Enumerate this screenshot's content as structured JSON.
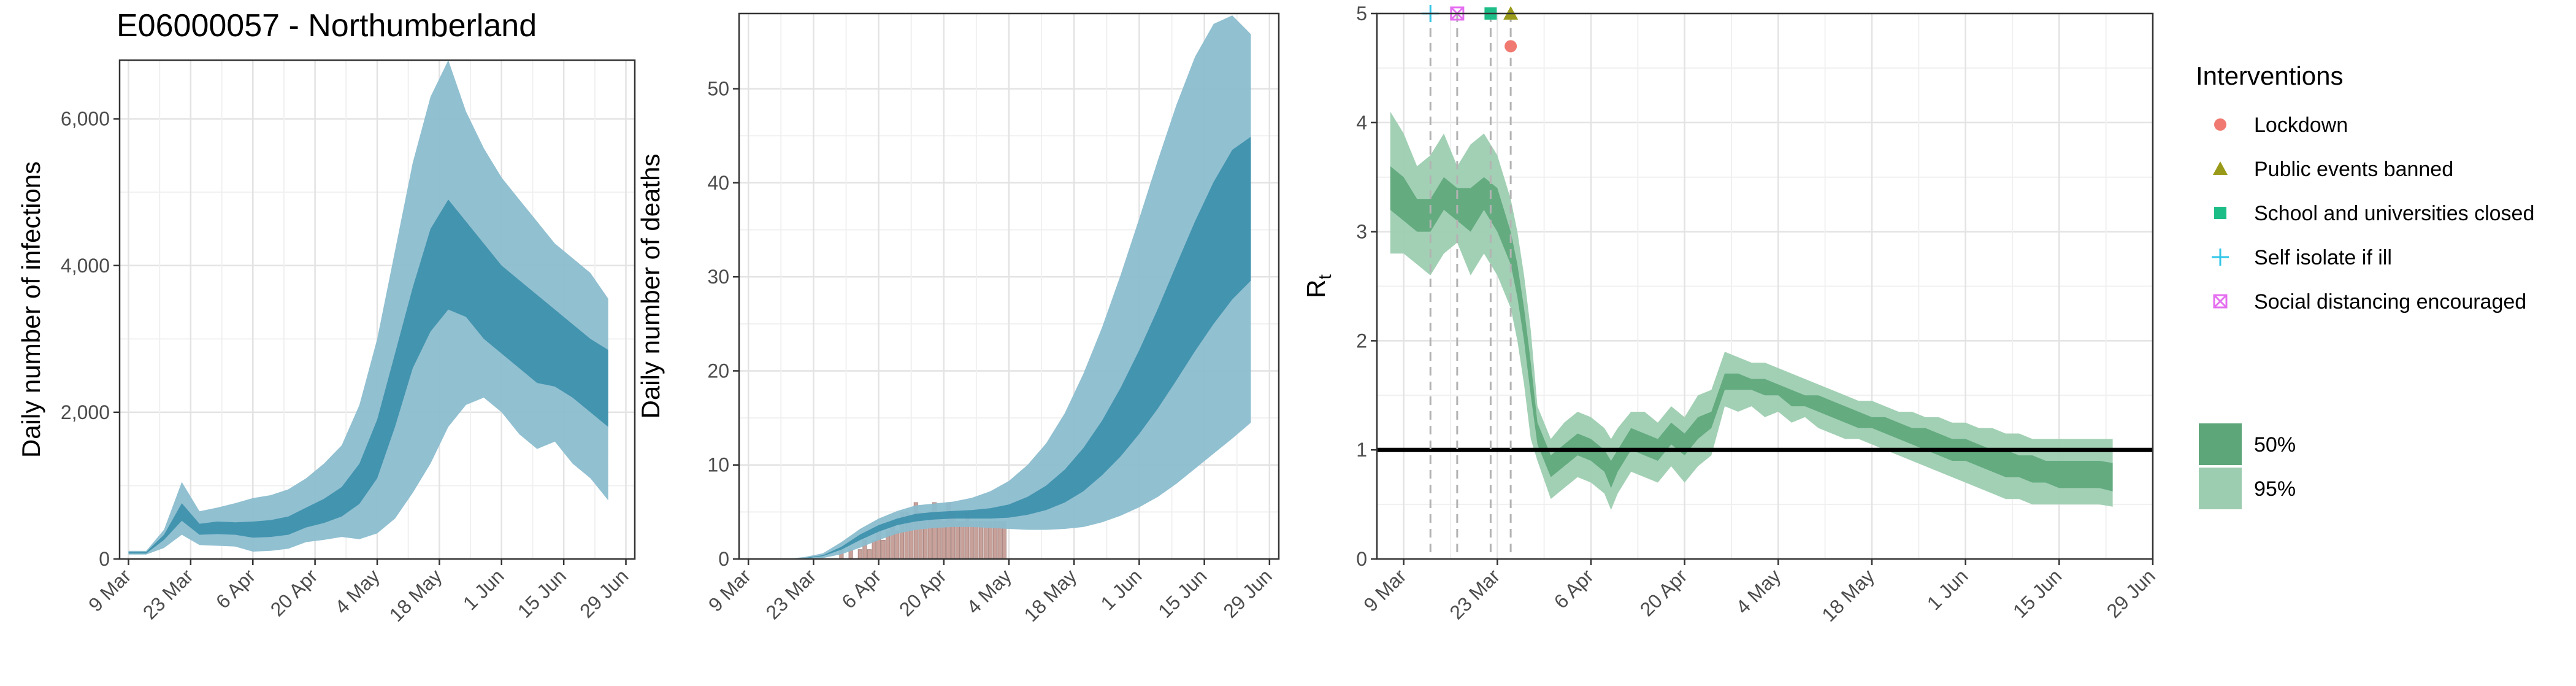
{
  "title": "E06000057 - Northumberland",
  "colors": {
    "band95_blue": "#8bbdcf",
    "band50_blue": "#3b8fab",
    "deaths_bar": "#c9a19b",
    "band95_green": "#9dcdb0",
    "band50_green": "#5da67a",
    "lockdown": "#f07a71",
    "public_events": "#9a9a1a",
    "schools": "#1dbd87",
    "self_isolate": "#31c6e8",
    "social_distancing": "#e46ff0"
  },
  "chart_data": [
    {
      "type": "area",
      "ylabel": "Daily number of infections",
      "xlabel": "",
      "ylim": [
        0,
        6800
      ],
      "yticks": [
        0,
        2000,
        4000,
        6000
      ],
      "ytick_labels": [
        "0",
        "2,000",
        "4,000",
        "6,000"
      ],
      "xlim": [
        -2,
        114
      ],
      "xticks": [
        0,
        14,
        28,
        42,
        56,
        70,
        84,
        98,
        112
      ],
      "xtick_labels": [
        "9 Mar",
        "23 Mar",
        "6 Apr",
        "20 Apr",
        "4 May",
        "18 May",
        "1 Jun",
        "15 Jun",
        "29 Jun"
      ],
      "x_unit": "days since 9 Mar",
      "grid": true,
      "bands": [
        {
          "name": "95%",
          "x": [
            0,
            4,
            8,
            12,
            16,
            20,
            24,
            28,
            32,
            36,
            40,
            44,
            48,
            52,
            56,
            60,
            64,
            68,
            72,
            76,
            80,
            84,
            88,
            92,
            96,
            100,
            104,
            108
          ],
          "low": [
            60,
            60,
            150,
            330,
            190,
            180,
            170,
            100,
            110,
            140,
            230,
            260,
            300,
            270,
            350,
            550,
            900,
            1300,
            1800,
            2100,
            2200,
            2000,
            1700,
            1500,
            1600,
            1300,
            1100,
            800
          ],
          "high": [
            110,
            110,
            400,
            1050,
            650,
            700,
            760,
            830,
            870,
            950,
            1100,
            1300,
            1550,
            2100,
            3000,
            4200,
            5400,
            6300,
            6800,
            6100,
            5600,
            5200,
            4900,
            4600,
            4300,
            4100,
            3900,
            3550
          ]
        },
        {
          "name": "50%",
          "x": [
            0,
            4,
            8,
            12,
            16,
            20,
            24,
            28,
            32,
            36,
            40,
            44,
            48,
            52,
            56,
            60,
            64,
            68,
            72,
            76,
            80,
            84,
            88,
            92,
            96,
            100,
            104,
            108
          ],
          "low": [
            75,
            75,
            260,
            520,
            330,
            340,
            330,
            290,
            300,
            330,
            430,
            490,
            580,
            750,
            1100,
            1800,
            2600,
            3100,
            3400,
            3300,
            3000,
            2800,
            2600,
            2400,
            2350,
            2200,
            2000,
            1800
          ],
          "high": [
            95,
            95,
            330,
            760,
            480,
            510,
            500,
            510,
            530,
            580,
            700,
            820,
            980,
            1300,
            1900,
            2800,
            3700,
            4500,
            4900,
            4600,
            4300,
            4000,
            3800,
            3600,
            3400,
            3200,
            3000,
            2850
          ]
        }
      ]
    },
    {
      "type": "area",
      "ylabel": "Daily number of deaths",
      "xlabel": "",
      "ylim": [
        0,
        58
      ],
      "yticks": [
        0,
        10,
        20,
        30,
        40,
        50
      ],
      "ytick_labels": [
        "0",
        "10",
        "20",
        "30",
        "40",
        "50"
      ],
      "xlim": [
        -2,
        114
      ],
      "xticks": [
        0,
        14,
        28,
        42,
        56,
        70,
        84,
        98,
        112
      ],
      "xtick_labels": [
        "9 Mar",
        "23 Mar",
        "6 Apr",
        "20 Apr",
        "4 May",
        "18 May",
        "1 Jun",
        "15 Jun",
        "29 Jun"
      ],
      "x_unit": "days since 9 Mar",
      "grid": true,
      "bars": {
        "name": "Observed deaths",
        "x": [
          20,
          22,
          24,
          25,
          26,
          27,
          28,
          29,
          30,
          31,
          32,
          33,
          34,
          35,
          36,
          37,
          38,
          39,
          40,
          41,
          42,
          43,
          44,
          45,
          46,
          47,
          48,
          49,
          50,
          51,
          52,
          53,
          54,
          55
        ],
        "values": [
          1,
          1,
          1,
          2,
          1,
          2,
          3,
          2,
          3,
          4,
          3,
          5,
          5,
          4,
          6,
          5,
          4,
          5,
          6,
          5,
          4,
          6,
          5,
          4,
          4,
          5,
          4,
          4,
          4,
          4,
          4,
          4,
          4,
          4
        ]
      },
      "bands": [
        {
          "name": "95%",
          "x": [
            0,
            8,
            12,
            16,
            20,
            24,
            28,
            32,
            36,
            40,
            44,
            48,
            52,
            56,
            60,
            64,
            68,
            72,
            76,
            80,
            84,
            88,
            92,
            96,
            100,
            104,
            108
          ],
          "low": [
            0,
            0,
            0,
            0.1,
            0.5,
            1.2,
            2,
            2.7,
            3.1,
            3.3,
            3.4,
            3.4,
            3.3,
            3.2,
            3.1,
            3.1,
            3.2,
            3.4,
            3.9,
            4.6,
            5.5,
            6.6,
            8,
            9.6,
            11.2,
            12.8,
            14.5
          ],
          "high": [
            0,
            0,
            0.2,
            0.6,
            1.8,
            3.2,
            4.3,
            5.1,
            5.7,
            5.9,
            6.1,
            6.5,
            7.2,
            8.3,
            10,
            12.3,
            15.5,
            19.7,
            24.6,
            30.2,
            36.2,
            42.4,
            48.3,
            53.4,
            56.9,
            57.8,
            55.8
          ]
        },
        {
          "name": "50%",
          "x": [
            0,
            8,
            12,
            16,
            20,
            24,
            28,
            32,
            36,
            40,
            44,
            48,
            52,
            56,
            60,
            64,
            68,
            72,
            76,
            80,
            84,
            88,
            92,
            96,
            100,
            104,
            108
          ],
          "low": [
            0,
            0,
            0.05,
            0.3,
            1,
            2,
            2.9,
            3.6,
            4,
            4.2,
            4.3,
            4.3,
            4.3,
            4.4,
            4.7,
            5.2,
            6,
            7.2,
            8.9,
            10.9,
            13.3,
            16,
            19,
            22.1,
            25,
            27.6,
            29.6
          ],
          "high": [
            0,
            0,
            0.1,
            0.4,
            1.3,
            2.6,
            3.6,
            4.3,
            4.8,
            5,
            5.1,
            5.2,
            5.4,
            5.8,
            6.6,
            7.8,
            9.5,
            11.8,
            14.7,
            18.2,
            22.2,
            26.6,
            31.3,
            35.9,
            40.1,
            43.5,
            44.9
          ]
        }
      ]
    },
    {
      "type": "area",
      "ylabel": "R",
      "ylabel_subscript": "t",
      "xlabel": "",
      "ylim": [
        0,
        5
      ],
      "yticks": [
        0,
        1,
        2,
        3,
        4,
        5
      ],
      "ytick_labels": [
        "0",
        "1",
        "2",
        "3",
        "4",
        "5"
      ],
      "xlim": [
        -4,
        112
      ],
      "xticks": [
        0,
        14,
        28,
        42,
        56,
        70,
        84,
        98,
        112
      ],
      "xtick_labels": [
        "9 Mar",
        "23 Mar",
        "6 Apr",
        "20 Apr",
        "4 May",
        "18 May",
        "1 Jun",
        "15 Jun",
        "29 Jun"
      ],
      "x_unit": "days since 9 Mar",
      "grid": true,
      "reference_line": 1,
      "bands": [
        {
          "name": "95%",
          "x": [
            -2,
            0,
            2,
            4,
            6,
            8,
            10,
            12,
            14,
            16,
            17,
            18,
            19,
            20,
            22,
            24,
            26,
            28,
            30,
            31,
            32,
            34,
            36,
            38,
            40,
            42,
            44,
            46,
            48,
            50,
            52,
            54,
            56,
            58,
            60,
            62,
            64,
            66,
            68,
            70,
            72,
            74,
            76,
            78,
            80,
            82,
            84,
            86,
            88,
            90,
            92,
            94,
            96,
            98,
            100,
            102,
            104,
            106
          ],
          "low": [
            2.8,
            2.8,
            2.7,
            2.6,
            2.8,
            2.9,
            2.6,
            2.8,
            2.6,
            2.3,
            2,
            1.6,
            1.1,
            0.9,
            0.55,
            0.65,
            0.75,
            0.7,
            0.6,
            0.45,
            0.6,
            0.8,
            0.75,
            0.7,
            0.85,
            0.7,
            0.85,
            0.95,
            1.4,
            1.35,
            1.4,
            1.3,
            1.35,
            1.25,
            1.3,
            1.2,
            1.15,
            1.1,
            1.1,
            1.05,
            1,
            0.95,
            0.9,
            0.85,
            0.8,
            0.75,
            0.7,
            0.65,
            0.6,
            0.55,
            0.55,
            0.5,
            0.5,
            0.5,
            0.5,
            0.5,
            0.5,
            0.48
          ],
          "high": [
            4.1,
            3.9,
            3.6,
            3.7,
            3.9,
            3.6,
            3.8,
            3.9,
            3.7,
            3.3,
            3.0,
            2.6,
            2.1,
            1.4,
            1.1,
            1.25,
            1.35,
            1.3,
            1.2,
            1.1,
            1.2,
            1.35,
            1.35,
            1.25,
            1.4,
            1.3,
            1.5,
            1.55,
            1.9,
            1.85,
            1.8,
            1.8,
            1.75,
            1.7,
            1.65,
            1.6,
            1.55,
            1.5,
            1.45,
            1.45,
            1.4,
            1.35,
            1.35,
            1.3,
            1.3,
            1.25,
            1.25,
            1.2,
            1.2,
            1.15,
            1.15,
            1.1,
            1.1,
            1.1,
            1.1,
            1.1,
            1.1,
            1.1
          ]
        },
        {
          "name": "50%",
          "x": [
            -2,
            0,
            2,
            4,
            6,
            8,
            10,
            12,
            14,
            16,
            17,
            18,
            19,
            20,
            22,
            24,
            26,
            28,
            30,
            31,
            32,
            34,
            36,
            38,
            40,
            42,
            44,
            46,
            48,
            50,
            52,
            54,
            56,
            58,
            60,
            62,
            64,
            66,
            68,
            70,
            72,
            74,
            76,
            78,
            80,
            82,
            84,
            86,
            88,
            90,
            92,
            94,
            96,
            98,
            100,
            102,
            104,
            106
          ],
          "low": [
            3.2,
            3.1,
            3.0,
            3.0,
            3.2,
            3.1,
            3.0,
            3.2,
            3.0,
            2.7,
            2.4,
            2.0,
            1.5,
            1.05,
            0.75,
            0.85,
            0.95,
            0.9,
            0.8,
            0.65,
            0.8,
            1.0,
            0.95,
            0.9,
            1.05,
            0.95,
            1.1,
            1.2,
            1.55,
            1.55,
            1.55,
            1.5,
            1.5,
            1.4,
            1.4,
            1.35,
            1.3,
            1.25,
            1.2,
            1.2,
            1.15,
            1.1,
            1.05,
            1.0,
            0.95,
            0.9,
            0.9,
            0.85,
            0.8,
            0.75,
            0.75,
            0.7,
            0.7,
            0.65,
            0.65,
            0.65,
            0.65,
            0.62
          ],
          "high": [
            3.6,
            3.5,
            3.3,
            3.3,
            3.5,
            3.4,
            3.4,
            3.5,
            3.4,
            3.0,
            2.7,
            2.3,
            1.8,
            1.25,
            0.95,
            1.05,
            1.15,
            1.1,
            1.0,
            0.9,
            1.0,
            1.2,
            1.15,
            1.1,
            1.25,
            1.15,
            1.3,
            1.35,
            1.7,
            1.7,
            1.65,
            1.65,
            1.6,
            1.55,
            1.5,
            1.5,
            1.45,
            1.4,
            1.35,
            1.3,
            1.3,
            1.25,
            1.2,
            1.2,
            1.15,
            1.1,
            1.1,
            1.05,
            1.0,
            1.0,
            0.95,
            0.95,
            0.9,
            0.9,
            0.9,
            0.9,
            0.9,
            0.88
          ]
        }
      ],
      "interventions": [
        {
          "name": "Self isolate if ill",
          "x": 4,
          "y": 5,
          "shape": "plus",
          "color_key": "self_isolate"
        },
        {
          "name": "Social distancing encouraged",
          "x": 8,
          "y": 5,
          "shape": "square-x",
          "color_key": "social_distancing"
        },
        {
          "name": "School and universities closed",
          "x": 13,
          "y": 5,
          "shape": "square",
          "color_key": "schools"
        },
        {
          "name": "Public events banned",
          "x": 16,
          "y": 5,
          "shape": "triangle",
          "color_key": "public_events"
        },
        {
          "name": "Lockdown",
          "x": 16,
          "y": 4.7,
          "shape": "circle",
          "color_key": "lockdown"
        }
      ]
    }
  ],
  "legend": {
    "interventions_title": "Interventions",
    "interventions": [
      {
        "label": "Lockdown",
        "shape": "circle",
        "color_key": "lockdown"
      },
      {
        "label": "Public events banned",
        "shape": "triangle",
        "color_key": "public_events"
      },
      {
        "label": "School and universities closed",
        "shape": "square",
        "color_key": "schools"
      },
      {
        "label": "Self isolate if ill",
        "shape": "plus",
        "color_key": "self_isolate"
      },
      {
        "label": "Social distancing encouraged",
        "shape": "square-x",
        "color_key": "social_distancing"
      }
    ],
    "bands": [
      {
        "label": "50%",
        "color_key": "band50_green"
      },
      {
        "label": "95%",
        "color_key": "band95_green"
      }
    ]
  }
}
